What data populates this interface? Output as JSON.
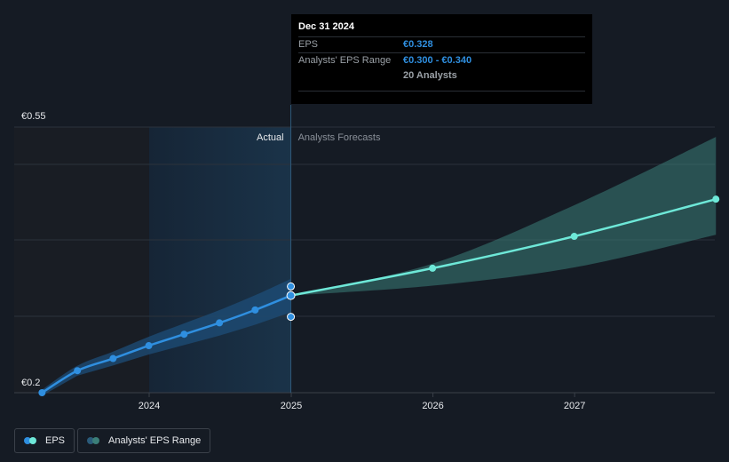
{
  "chart_data": {
    "type": "line",
    "y_tick_labels": [
      "€0.55",
      "€0.2"
    ],
    "x_ticks": [
      "2024",
      "2025",
      "2026",
      "2027"
    ],
    "region_labels": {
      "actual": "Actual",
      "forecast": "Analysts Forecasts"
    },
    "ylim": [
      0.2,
      0.55
    ],
    "series": [
      {
        "name": "EPS",
        "x": [
          "2023-03-31",
          "2023-06-30",
          "2023-09-30",
          "2023-12-31",
          "2024-03-31",
          "2024-06-30",
          "2024-09-30",
          "2024-12-31"
        ],
        "values": [
          0.2,
          0.229,
          0.245,
          0.262,
          0.277,
          0.292,
          0.309,
          0.328
        ],
        "color": "#2f8fe0"
      },
      {
        "name": "EPS Forecast",
        "x": [
          "2024-12-31",
          "2025-12-31",
          "2026-12-31",
          "2027-12-31"
        ],
        "values": [
          0.328,
          0.364,
          0.406,
          0.455
        ],
        "color": "#6ee8d8"
      },
      {
        "name": "Analysts' EPS Range",
        "x": [
          "2024-12-31",
          "2025-12-31",
          "2026-12-31",
          "2027-12-31"
        ],
        "low": [
          0.328,
          0.341,
          0.365,
          0.408
        ],
        "high": [
          0.328,
          0.37,
          0.447,
          0.537
        ],
        "color": "#3b7e78"
      }
    ],
    "range_markers_2024": {
      "x": "2024-12-31",
      "high": 0.34,
      "low": 0.3
    },
    "grid": true
  },
  "tooltip": {
    "date": "Dec 31 2024",
    "eps_label": "EPS",
    "eps_value": "€0.328",
    "range_label": "Analysts' EPS Range",
    "range_value": "€0.300 - €0.340",
    "analysts": "20 Analysts"
  },
  "legend": {
    "eps": "EPS",
    "range": "Analysts' EPS Range",
    "eps_colors": [
      "#6ee8d8",
      "#2f8fe0"
    ],
    "range_colors": [
      "#3b7e78",
      "#2a5b7a"
    ]
  }
}
